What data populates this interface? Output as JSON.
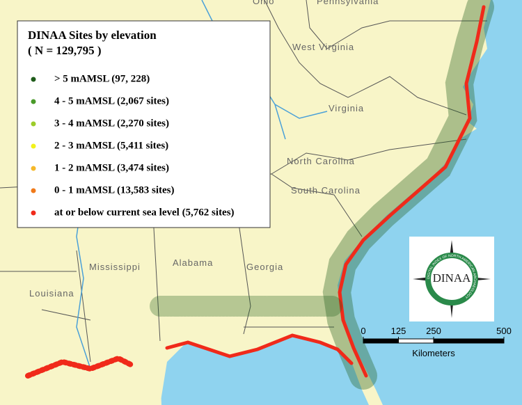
{
  "legend": {
    "title": "DINAA Sites by elevation",
    "subtitle": "( N = 129,795 )",
    "items": [
      {
        "label": "> 5 mAMSL (97, 228)",
        "color": "#1f5c1a"
      },
      {
        "label": "4 - 5 mAMSL (2,067 sites)",
        "color": "#4a9a2a"
      },
      {
        "label": "3 - 4 mAMSL (2,270 sites)",
        "color": "#9ccc2a"
      },
      {
        "label": "2 - 3 mAMSL (5,411 sites)",
        "color": "#f2f21a"
      },
      {
        "label": "1 - 2 mAMSL (3,474 sites)",
        "color": "#f5b82a"
      },
      {
        "label": "0 - 1 mAMSL (13,583 sites)",
        "color": "#f07a1a"
      },
      {
        "label": "at or below current sea level (5,762 sites)",
        "color": "#f02a1a"
      }
    ]
  },
  "states": [
    "Ohio",
    "Pennsylvania",
    "West Virginia",
    "Virginia",
    "North Carolina",
    "South Carolina",
    "Mississippi",
    "Alabama",
    "Georgia",
    "Louisiana"
  ],
  "scale_bar": {
    "ticks": [
      0,
      125,
      250,
      500
    ],
    "unit": "Kilometers"
  },
  "logo": {
    "name": "DINAA",
    "ring_text": "DIGITAL INDEX OF NORTH AMERICAN ARCHAEOLOGY"
  }
}
